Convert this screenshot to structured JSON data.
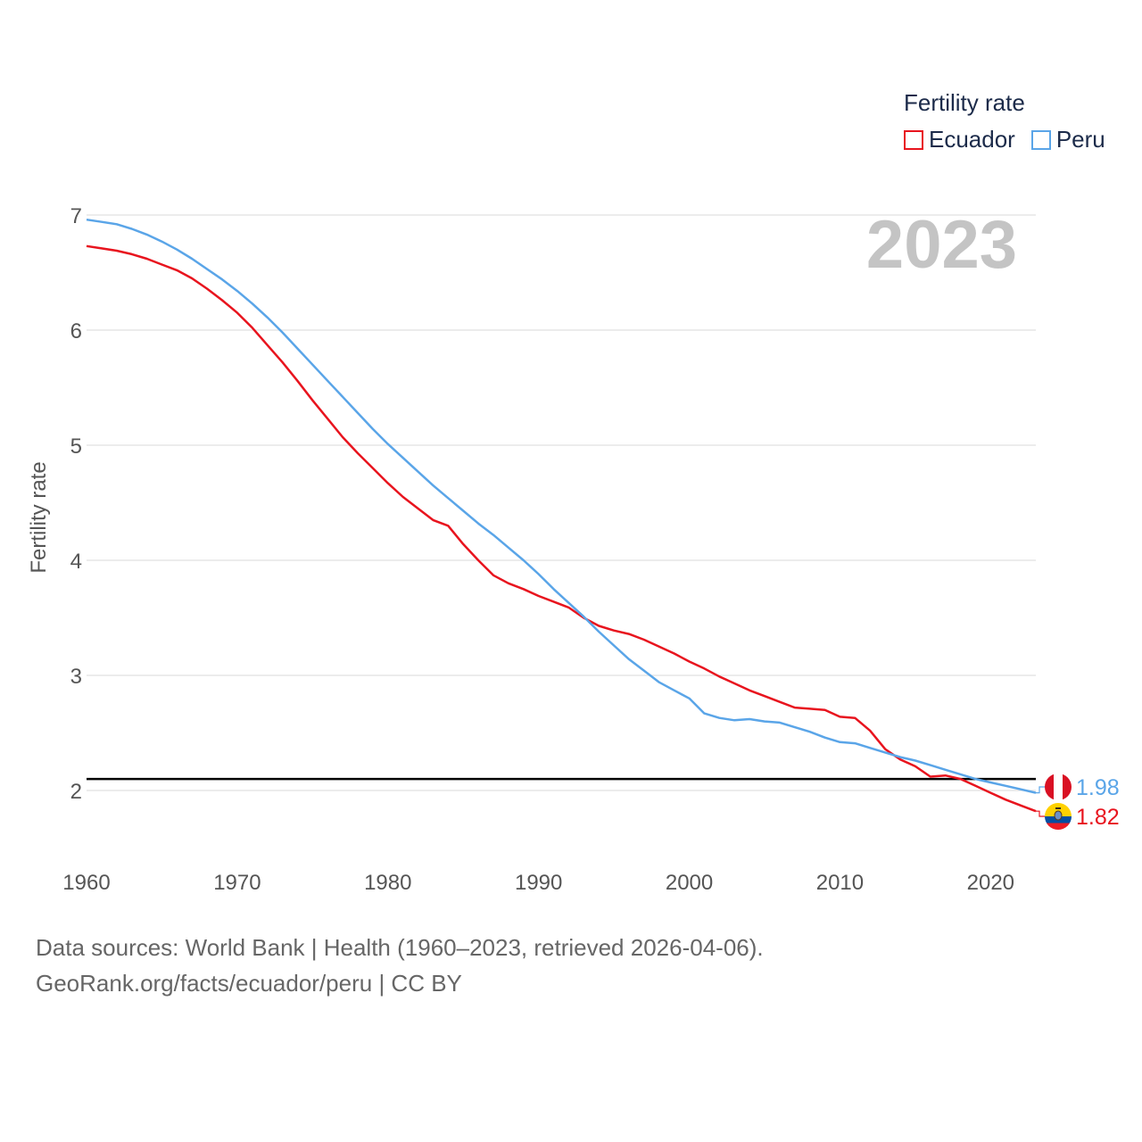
{
  "legend": {
    "title": "Fertility rate",
    "items": [
      {
        "label": "Ecuador",
        "color": "#e8141e"
      },
      {
        "label": "Peru",
        "color": "#5aa5e8"
      }
    ]
  },
  "year_label": "2023",
  "footer": {
    "line1": "Data sources: World Bank | Health (1960–2023, retrieved 2026-04-06).",
    "line2": "GeoRank.org/facts/ecuador/peru | CC BY"
  },
  "chart_data": {
    "type": "line",
    "title": "Fertility rate",
    "xlabel": "",
    "ylabel": "Fertility rate",
    "xlim": [
      1960,
      2023
    ],
    "ylim": [
      1.4,
      7.0
    ],
    "x_ticks": [
      1960,
      1970,
      1980,
      1990,
      2000,
      2010,
      2020
    ],
    "y_ticks": [
      2,
      3,
      4,
      5,
      6,
      7
    ],
    "grid": true,
    "legend_position": "top-right",
    "reference_line": {
      "y": 2.1,
      "color": "#000000"
    },
    "x": [
      1960,
      1961,
      1962,
      1963,
      1964,
      1965,
      1966,
      1967,
      1968,
      1969,
      1970,
      1971,
      1972,
      1973,
      1974,
      1975,
      1976,
      1977,
      1978,
      1979,
      1980,
      1981,
      1982,
      1983,
      1984,
      1985,
      1986,
      1987,
      1988,
      1989,
      1990,
      1991,
      1992,
      1993,
      1994,
      1995,
      1996,
      1997,
      1998,
      1999,
      2000,
      2001,
      2002,
      2003,
      2004,
      2005,
      2006,
      2007,
      2008,
      2009,
      2010,
      2011,
      2012,
      2013,
      2014,
      2015,
      2016,
      2017,
      2018,
      2019,
      2020,
      2021,
      2022,
      2023
    ],
    "series": [
      {
        "name": "Ecuador",
        "color": "#e8141e",
        "end_label": "1.82",
        "values": [
          6.73,
          6.71,
          6.69,
          6.66,
          6.62,
          6.57,
          6.52,
          6.45,
          6.36,
          6.26,
          6.15,
          6.02,
          5.87,
          5.72,
          5.56,
          5.39,
          5.23,
          5.07,
          4.93,
          4.8,
          4.67,
          4.55,
          4.45,
          4.35,
          4.3,
          4.14,
          4.0,
          3.87,
          3.8,
          3.75,
          3.69,
          3.64,
          3.59,
          3.5,
          3.43,
          3.39,
          3.36,
          3.31,
          3.25,
          3.19,
          3.12,
          3.06,
          2.99,
          2.93,
          2.87,
          2.82,
          2.77,
          2.72,
          2.71,
          2.7,
          2.64,
          2.63,
          2.52,
          2.36,
          2.27,
          2.21,
          2.12,
          2.13,
          2.1,
          2.04,
          1.98,
          1.92,
          1.87,
          1.82
        ]
      },
      {
        "name": "Peru",
        "color": "#5aa5e8",
        "end_label": "1.98",
        "values": [
          6.96,
          6.94,
          6.92,
          6.88,
          6.83,
          6.77,
          6.7,
          6.62,
          6.53,
          6.44,
          6.34,
          6.23,
          6.11,
          5.98,
          5.84,
          5.7,
          5.56,
          5.42,
          5.28,
          5.14,
          5.01,
          4.89,
          4.77,
          4.65,
          4.54,
          4.43,
          4.32,
          4.22,
          4.11,
          4.0,
          3.88,
          3.75,
          3.63,
          3.51,
          3.38,
          3.26,
          3.14,
          3.04,
          2.94,
          2.87,
          2.8,
          2.67,
          2.63,
          2.61,
          2.62,
          2.6,
          2.59,
          2.55,
          2.51,
          2.46,
          2.42,
          2.41,
          2.37,
          2.33,
          2.29,
          2.26,
          2.22,
          2.18,
          2.14,
          2.1,
          2.07,
          2.04,
          2.01,
          1.98
        ]
      }
    ]
  }
}
